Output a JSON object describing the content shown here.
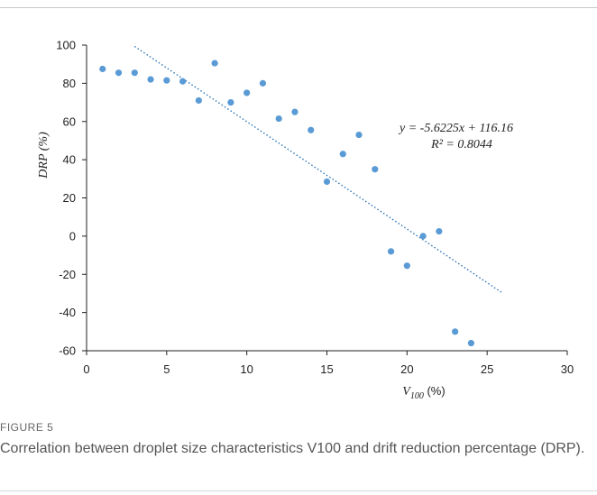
{
  "figure": {
    "label": "FIGURE 5",
    "caption": "Correlation  between  droplet size characteristics V100 and drift reduction percentage (DRP)."
  },
  "chart_data": {
    "type": "scatter",
    "xlabel_main": "V",
    "xlabel_sub": "100",
    "xlabel_unit": " (%)",
    "ylabel": "DRP (%)",
    "xlim": [
      0,
      30
    ],
    "ylim": [
      -60,
      100
    ],
    "x_ticks": [
      "0",
      "5",
      "10",
      "15",
      "20",
      "25",
      "30"
    ],
    "y_ticks": [
      "100",
      "80",
      "60",
      "40",
      "20",
      "0",
      "-20",
      "-40",
      "-60"
    ],
    "series": [
      {
        "x": [
          1,
          2,
          3,
          4,
          5,
          6,
          7,
          8,
          9,
          10,
          11,
          12,
          13,
          14,
          15,
          16,
          17,
          18,
          19,
          20,
          21,
          22,
          23,
          24
        ],
        "y": [
          87.5,
          85.5,
          85.5,
          82,
          81.5,
          81,
          71,
          90.5,
          70,
          75,
          80,
          61.5,
          65,
          55.5,
          28.5,
          43,
          53,
          35,
          -8,
          -15.5,
          0,
          2.5,
          -50,
          -56
        ]
      }
    ],
    "trendline": {
      "type": "linear",
      "slope": -5.6225,
      "intercept": 116.16,
      "x_range": [
        3,
        26
      ],
      "equation": "y = -5.6225x + 116.16",
      "r2": "R² = 0.8044"
    },
    "colors": {
      "points": "#5b9bd5",
      "trendline": "#2e75b6",
      "axis": "#222222"
    },
    "grid": false
  }
}
